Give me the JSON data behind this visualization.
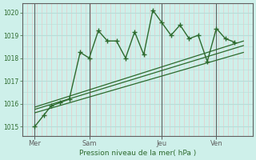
{
  "background_color": "#cef0ea",
  "plot_bg_color": "#cef0ea",
  "line_color": "#2d6a2d",
  "grid_h_color": "#b8ddd8",
  "grid_v_minor_color": "#e8c8c8",
  "grid_v_major_color": "#606060",
  "xlabel_text": "Pression niveau de la mer( hPa )",
  "yticks": [
    1015,
    1016,
    1017,
    1018,
    1019,
    1020
  ],
  "ylim": [
    1014.6,
    1020.4
  ],
  "xlim": [
    -0.2,
    12.5
  ],
  "xtick_labels": [
    "Mer",
    "Sam",
    "Jeu",
    "Ven"
  ],
  "xtick_positions": [
    0.5,
    3.5,
    7.5,
    10.5
  ],
  "vline_positions": [
    0.5,
    3.5,
    7.5,
    10.5
  ],
  "main_line_x": [
    0.5,
    1.0,
    1.4,
    1.9,
    2.4,
    3.0,
    3.5,
    4.0,
    4.5,
    5.0,
    5.5,
    6.0,
    6.5,
    7.0,
    7.5,
    8.0,
    8.5,
    9.0,
    9.5,
    10.0,
    10.5,
    11.0,
    11.5
  ],
  "main_line_y": [
    1015.0,
    1015.5,
    1015.9,
    1016.05,
    1016.2,
    1018.25,
    1018.0,
    1019.2,
    1018.75,
    1018.75,
    1018.0,
    1019.15,
    1018.15,
    1020.1,
    1019.55,
    1019.0,
    1019.45,
    1018.85,
    1019.0,
    1017.85,
    1019.3,
    1018.85,
    1018.7
  ],
  "trend_lines": [
    {
      "x": [
        0.5,
        12.0
      ],
      "y": [
        1015.6,
        1018.25
      ]
    },
    {
      "x": [
        0.5,
        12.0
      ],
      "y": [
        1015.75,
        1018.55
      ]
    },
    {
      "x": [
        0.5,
        12.0
      ],
      "y": [
        1015.85,
        1018.75
      ]
    }
  ],
  "n_minor_v": 48
}
